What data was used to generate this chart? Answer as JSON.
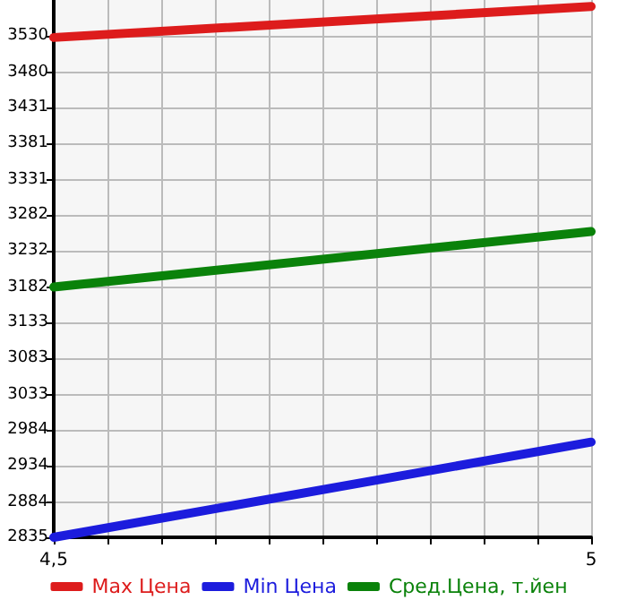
{
  "chart_data": {
    "type": "line",
    "x": [
      4.5,
      5
    ],
    "series": [
      {
        "name": "Max Цена",
        "color": "#dd1c1c",
        "values": [
          3528,
          3571
        ]
      },
      {
        "name": "Min Цена",
        "color": "#1c1cdd",
        "values": [
          2835,
          2967
        ]
      },
      {
        "name": "Сред.Цена, т.йен",
        "color": "#0a820a",
        "values": [
          3182,
          3259
        ]
      }
    ],
    "xlim": [
      4.5,
      5
    ],
    "xticks": [
      {
        "value": 4.5,
        "label": "4,5"
      },
      {
        "value": 4.55,
        "label": null
      },
      {
        "value": 4.6,
        "label": null
      },
      {
        "value": 4.65,
        "label": null
      },
      {
        "value": 4.7,
        "label": null
      },
      {
        "value": 4.75,
        "label": null
      },
      {
        "value": 4.8,
        "label": null
      },
      {
        "value": 4.85,
        "label": null
      },
      {
        "value": 4.9,
        "label": null
      },
      {
        "value": 4.95,
        "label": null
      },
      {
        "value": 5,
        "label": "5"
      }
    ],
    "ylim": [
      2835,
      3580
    ],
    "yticks": [
      2835,
      2884,
      2934,
      2984,
      3033,
      3083,
      3133,
      3182,
      3232,
      3282,
      3331,
      3381,
      3431,
      3480,
      3530
    ],
    "grid": true,
    "legend": "bottom",
    "marker": "none",
    "line_style": "solid"
  }
}
